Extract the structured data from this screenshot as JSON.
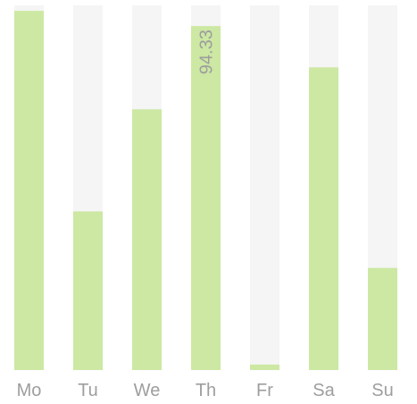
{
  "chart_data": {
    "type": "bar",
    "categories": [
      "Mo",
      "Tu",
      "We",
      "Th",
      "Fr",
      "Sa",
      "Su"
    ],
    "values": [
      98.5,
      43.5,
      71.5,
      94.33,
      1.5,
      83.0,
      28.0
    ],
    "ylim": [
      0,
      100
    ],
    "grid": false,
    "legend": "none",
    "annotations": [
      {
        "category": "Th",
        "text": "94.33",
        "orientation": "vertical"
      }
    ],
    "colors": {
      "bar": "#cce8a3",
      "track": "#f5f5f5",
      "label": "#9e9e9e"
    }
  }
}
